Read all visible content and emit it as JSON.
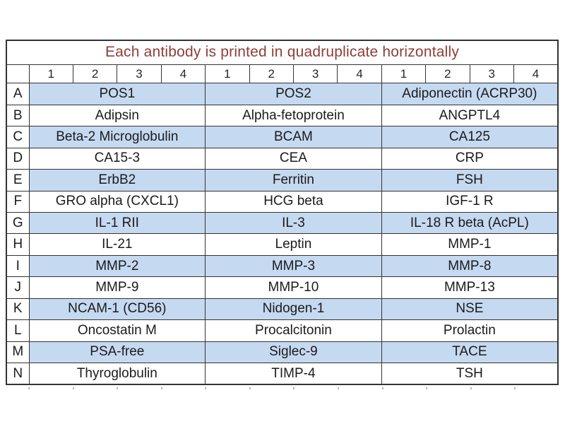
{
  "title": "Each antibody is printed in quadruplicate horizontally",
  "colors": {
    "row_highlight": "#c5d9f1",
    "title_text": "#8e3d38",
    "border": "#333333",
    "cell_text": "#1b1b1b",
    "tick": "#b8b8b8"
  },
  "column_numbers": [
    "1",
    "2",
    "3",
    "4",
    "1",
    "2",
    "3",
    "4",
    "1",
    "2",
    "3",
    "4"
  ],
  "rows": [
    {
      "label": "A",
      "highlight": true,
      "cells": [
        "POS1",
        "POS2",
        "Adiponectin (ACRP30)"
      ]
    },
    {
      "label": "B",
      "highlight": false,
      "cells": [
        "Adipsin",
        "Alpha-fetoprotein",
        "ANGPTL4"
      ]
    },
    {
      "label": "C",
      "highlight": true,
      "cells": [
        "Beta-2 Microglobulin",
        "BCAM",
        "CA125"
      ]
    },
    {
      "label": "D",
      "highlight": false,
      "cells": [
        "CA15-3",
        "CEA",
        "CRP"
      ]
    },
    {
      "label": "E",
      "highlight": true,
      "cells": [
        "ErbB2",
        "Ferritin",
        "FSH"
      ]
    },
    {
      "label": "F",
      "highlight": false,
      "cells": [
        "GRO alpha (CXCL1)",
        "HCG beta",
        "IGF-1 R"
      ]
    },
    {
      "label": "G",
      "highlight": true,
      "cells": [
        "IL-1 RII",
        "IL-3",
        "IL-18 R beta (AcPL)"
      ]
    },
    {
      "label": "H",
      "highlight": false,
      "cells": [
        "IL-21",
        "Leptin",
        "MMP-1"
      ]
    },
    {
      "label": "I",
      "highlight": true,
      "cells": [
        "MMP-2",
        "MMP-3",
        "MMP-8"
      ]
    },
    {
      "label": "J",
      "highlight": false,
      "cells": [
        "MMP-9",
        "MMP-10",
        "MMP-13"
      ]
    },
    {
      "label": "K",
      "highlight": true,
      "cells": [
        "NCAM-1 (CD56)",
        "Nidogen-1",
        "NSE"
      ]
    },
    {
      "label": "L",
      "highlight": false,
      "cells": [
        "Oncostatin M",
        "Procalcitonin",
        "Prolactin"
      ]
    },
    {
      "label": "M",
      "highlight": true,
      "cells": [
        "PSA-free",
        "Siglec-9",
        "TACE"
      ]
    },
    {
      "label": "N",
      "highlight": false,
      "cells": [
        "Thyroglobulin",
        "TIMP-4",
        "TSH"
      ]
    }
  ]
}
